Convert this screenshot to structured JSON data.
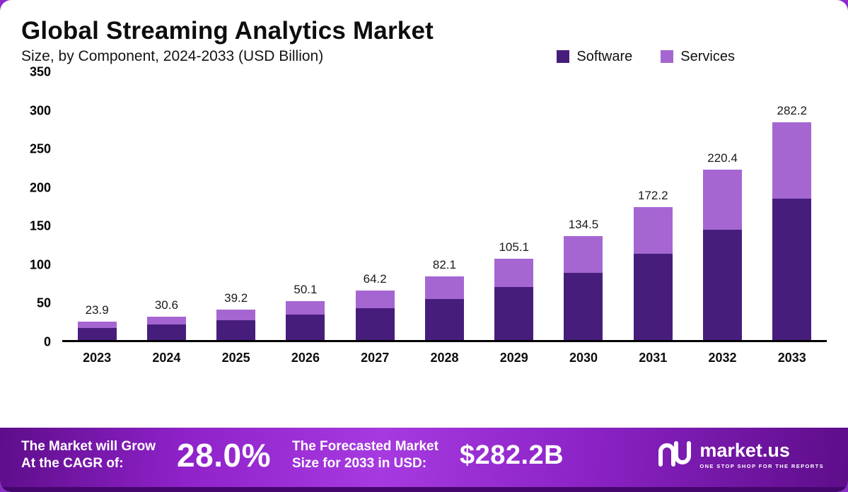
{
  "title": "Global Streaming Analytics Market",
  "subtitle": "Size, by Component, 2024-2033 (USD Billion)",
  "chart_data": {
    "type": "bar",
    "stacked": true,
    "title": "Global Streaming Analytics Market",
    "subtitle": "Size, by Component, 2024-2033 (USD Billion)",
    "ylabel": "USD Billion",
    "ylim": [
      0,
      350
    ],
    "yticks": [
      0,
      50,
      100,
      150,
      200,
      250,
      300,
      350
    ],
    "grid": false,
    "legend_position": "top-right",
    "categories": [
      "2023",
      "2024",
      "2025",
      "2026",
      "2027",
      "2028",
      "2029",
      "2030",
      "2031",
      "2032",
      "2033"
    ],
    "series": [
      {
        "name": "Software",
        "color": "#471d7c",
        "values": [
          15.5,
          20.0,
          25.5,
          32.6,
          41.7,
          53.4,
          68.3,
          87.4,
          111.9,
          143.3,
          183.4
        ]
      },
      {
        "name": "Services",
        "color": "#a566d2",
        "values": [
          8.4,
          10.6,
          13.7,
          17.5,
          22.5,
          28.7,
          36.8,
          47.1,
          60.3,
          77.1,
          98.8
        ]
      }
    ],
    "totals": [
      23.9,
      30.6,
      39.2,
      50.1,
      64.2,
      82.1,
      105.1,
      134.5,
      172.2,
      220.4,
      282.2
    ]
  },
  "footer": {
    "cagr_label_line1": "The Market will Grow",
    "cagr_label_line2": "At the CAGR of:",
    "cagr_value": "28.0%",
    "forecast_label_line1": "The Forecasted Market",
    "forecast_label_line2": "Size for 2033 in USD:",
    "forecast_value": "$282.2B",
    "brand": "market.us",
    "brand_tagline": "ONE STOP SHOP FOR THE REPORTS"
  }
}
